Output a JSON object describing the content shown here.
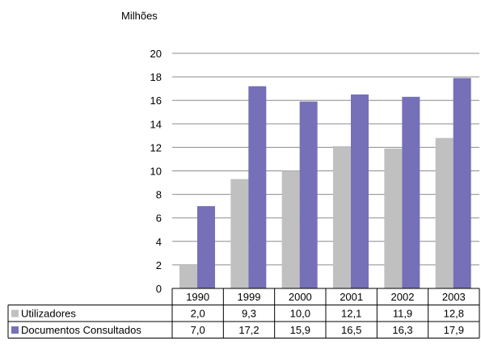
{
  "chart_data": {
    "type": "bar",
    "ylabel": "Milhões",
    "categories": [
      "1990",
      "1999",
      "2000",
      "2001",
      "2002",
      "2003"
    ],
    "ylim": [
      0,
      20
    ],
    "yticks": [
      0,
      2,
      4,
      6,
      8,
      10,
      12,
      14,
      16,
      18,
      20
    ],
    "grid": true,
    "legend": "data-table",
    "series": [
      {
        "name": "Utilizadores",
        "color": "#c0c0c0",
        "values": [
          2.0,
          9.3,
          10.0,
          12.1,
          11.9,
          12.8
        ],
        "labels": [
          "2,0",
          "9,3",
          "10,0",
          "12,1",
          "11,9",
          "12,8"
        ]
      },
      {
        "name": "Documentos Consultados",
        "color": "#7570b8",
        "values": [
          7.0,
          17.2,
          15.9,
          16.5,
          16.3,
          17.9
        ],
        "labels": [
          "7,0",
          "17,2",
          "15,9",
          "16,5",
          "16,3",
          "17,9"
        ]
      }
    ]
  }
}
